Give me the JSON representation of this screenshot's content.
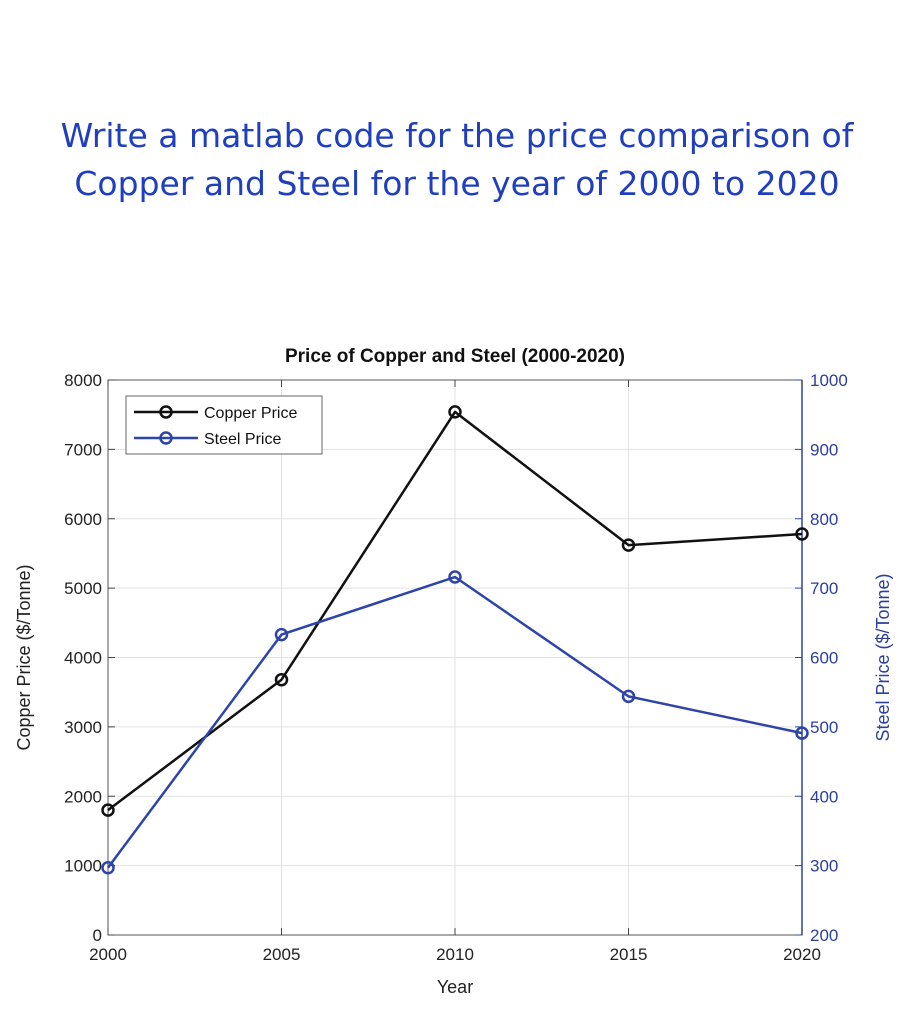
{
  "prompt": {
    "line1": "Write a matlab code for the price comparison of",
    "line2": "Copper and Steel for the year of 2000 to 2020"
  },
  "chart_data": {
    "type": "line",
    "title": "Price of Copper and Steel (2000-2020)",
    "xlabel": "Year",
    "ylabel_left": "Copper Price ($/Tonne)",
    "ylabel_right": "Steel Price ($/Tonne)",
    "x": [
      2000,
      2005,
      2010,
      2015,
      2020
    ],
    "xlim": [
      2000,
      2020
    ],
    "ylim_left": [
      0,
      8000
    ],
    "ylim_right": [
      200,
      1000
    ],
    "xticks": [
      2000,
      2005,
      2010,
      2015,
      2020
    ],
    "yticks_left": [
      0,
      1000,
      2000,
      3000,
      4000,
      5000,
      6000,
      7000,
      8000
    ],
    "yticks_right": [
      200,
      300,
      400,
      500,
      600,
      700,
      800,
      900,
      1000
    ],
    "grid": true,
    "legend_position": "top-left",
    "series": [
      {
        "name": "Copper Price",
        "axis": "left",
        "color": "#111111",
        "marker": "circle",
        "values": [
          1800,
          3680,
          7540,
          5620,
          5780
        ]
      },
      {
        "name": "Steel Price",
        "axis": "right",
        "color": "#2e44a8",
        "marker": "circle",
        "values": [
          297,
          633,
          716,
          544,
          491
        ]
      }
    ]
  }
}
